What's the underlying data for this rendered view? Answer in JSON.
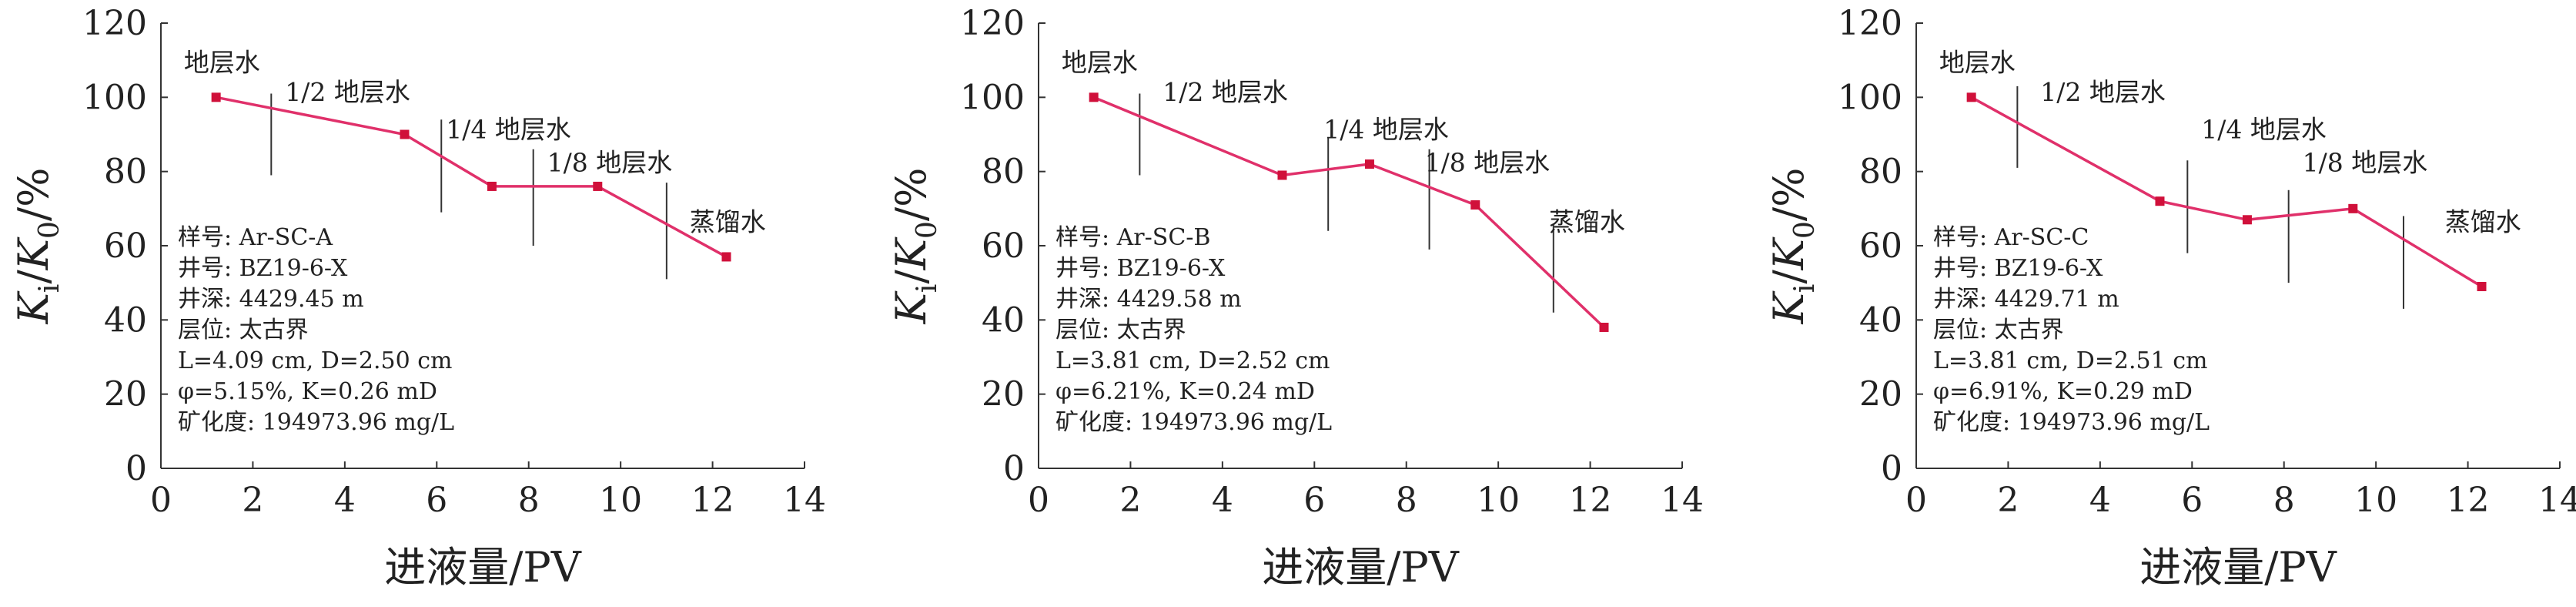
{
  "colors": {
    "series": "#e0306a",
    "marker": "#d0103a",
    "axis": "#333333",
    "divider": "#333333",
    "text": "#222222"
  },
  "chart_data": [
    {
      "type": "line",
      "id": "A",
      "ylabel": "K_i/K_0/%",
      "ylabel_parts": {
        "main": "K",
        "sub1": "i",
        "sep": "/",
        "main2": "K",
        "sub2": "0",
        "unit": "/%"
      },
      "xlabel": "进液量/PV",
      "xlim": [
        0,
        14
      ],
      "ylim": [
        0,
        120
      ],
      "xticks": [
        0,
        2,
        4,
        6,
        8,
        10,
        12,
        14
      ],
      "yticks": [
        0,
        20,
        40,
        60,
        80,
        100,
        120
      ],
      "xtick_labels": [
        "0",
        "2",
        "4",
        "6",
        "8",
        "10",
        "12",
        "14"
      ],
      "ytick_labels": [
        "0",
        "20",
        "40",
        "60",
        "80",
        "100",
        "120"
      ],
      "series": [
        {
          "x": [
            1.2,
            5.3,
            7.2,
            9.5,
            12.3
          ],
          "y": [
            100,
            90,
            76,
            76,
            57
          ]
        }
      ],
      "dividers": [
        {
          "x": 2.4,
          "y0": 79,
          "y1": 101
        },
        {
          "x": 6.1,
          "y0": 69,
          "y1": 94
        },
        {
          "x": 8.1,
          "y0": 60,
          "y1": 86
        },
        {
          "x": 11.0,
          "y0": 51,
          "y1": 77
        }
      ],
      "stage_labels": [
        {
          "text": "地层水",
          "x": 0.5,
          "y": 107
        },
        {
          "text": "1/2 地层水",
          "x": 2.7,
          "y": 99
        },
        {
          "text": "1/4 地层水",
          "x": 6.2,
          "y": 89
        },
        {
          "text": "1/8 地层水",
          "x": 8.4,
          "y": 80
        },
        {
          "text": "蒸馏水",
          "x": 11.5,
          "y": 64
        }
      ],
      "info": [
        "样号: Ar-SC-A",
        "井号: BZ19-6-X",
        "井深: 4429.45 m",
        "层位: 太古界",
        "L=4.09 cm, D=2.50 cm",
        "φ=5.15%, K=0.26 mD",
        "矿化度: 194973.96 mg/L"
      ]
    },
    {
      "type": "line",
      "id": "B",
      "ylabel": "K_i/K_0/%",
      "ylabel_parts": {
        "main": "K",
        "sub1": "i",
        "sep": "/",
        "main2": "K",
        "sub2": "0",
        "unit": "/%"
      },
      "xlabel": "进液量/PV",
      "xlim": [
        0,
        14
      ],
      "ylim": [
        0,
        120
      ],
      "xticks": [
        0,
        2,
        4,
        6,
        8,
        10,
        12,
        14
      ],
      "yticks": [
        0,
        20,
        40,
        60,
        80,
        100,
        120
      ],
      "xtick_labels": [
        "0",
        "2",
        "4",
        "6",
        "8",
        "10",
        "12",
        "14"
      ],
      "ytick_labels": [
        "0",
        "20",
        "40",
        "60",
        "80",
        "100",
        "120"
      ],
      "series": [
        {
          "x": [
            1.2,
            5.3,
            7.2,
            9.5,
            12.3
          ],
          "y": [
            100,
            79,
            82,
            71,
            38
          ]
        }
      ],
      "dividers": [
        {
          "x": 2.2,
          "y0": 79,
          "y1": 101
        },
        {
          "x": 6.3,
          "y0": 64,
          "y1": 89
        },
        {
          "x": 8.5,
          "y0": 59,
          "y1": 86
        },
        {
          "x": 11.2,
          "y0": 42,
          "y1": 66
        }
      ],
      "stage_labels": [
        {
          "text": "地层水",
          "x": 0.5,
          "y": 107
        },
        {
          "text": "1/2 地层水",
          "x": 2.7,
          "y": 99
        },
        {
          "text": "1/4 地层水",
          "x": 6.2,
          "y": 89
        },
        {
          "text": "1/8 地层水",
          "x": 8.4,
          "y": 80
        },
        {
          "text": "蒸馏水",
          "x": 11.1,
          "y": 64
        }
      ],
      "info": [
        "样号: Ar-SC-B",
        "井号: BZ19-6-X",
        "井深: 4429.58 m",
        "层位: 太古界",
        "L=3.81 cm, D=2.52 cm",
        "φ=6.21%, K=0.24 mD",
        "矿化度: 194973.96 mg/L"
      ]
    },
    {
      "type": "line",
      "id": "C",
      "ylabel": "K_i/K_0/%",
      "ylabel_parts": {
        "main": "K",
        "sub1": "i",
        "sep": "/",
        "main2": "K",
        "sub2": "0",
        "unit": "/%"
      },
      "xlabel": "进液量/PV",
      "xlim": [
        0,
        14
      ],
      "ylim": [
        0,
        120
      ],
      "xticks": [
        0,
        2,
        4,
        6,
        8,
        10,
        12,
        14
      ],
      "yticks": [
        0,
        20,
        40,
        60,
        80,
        100,
        120
      ],
      "xtick_labels": [
        "0",
        "2",
        "4",
        "6",
        "8",
        "10",
        "12",
        "14"
      ],
      "ytick_labels": [
        "0",
        "20",
        "40",
        "60",
        "80",
        "100",
        "120"
      ],
      "series": [
        {
          "x": [
            1.2,
            5.3,
            7.2,
            9.5,
            12.3
          ],
          "y": [
            100,
            72,
            67,
            70,
            49
          ]
        }
      ],
      "dividers": [
        {
          "x": 2.2,
          "y0": 81,
          "y1": 103
        },
        {
          "x": 5.9,
          "y0": 58,
          "y1": 83
        },
        {
          "x": 8.1,
          "y0": 50,
          "y1": 75
        },
        {
          "x": 10.6,
          "y0": 43,
          "y1": 68
        }
      ],
      "stage_labels": [
        {
          "text": "地层水",
          "x": 0.5,
          "y": 107
        },
        {
          "text": "1/2 地层水",
          "x": 2.7,
          "y": 99
        },
        {
          "text": "1/4 地层水",
          "x": 6.2,
          "y": 89
        },
        {
          "text": "1/8 地层水",
          "x": 8.4,
          "y": 80
        },
        {
          "text": "蒸馏水",
          "x": 11.5,
          "y": 64
        }
      ],
      "info": [
        "样号: Ar-SC-C",
        "井号: BZ19-6-X",
        "井深: 4429.71 m",
        "层位: 太古界",
        "L=3.81 cm, D=2.51 cm",
        "φ=6.91%, K=0.29 mD",
        "矿化度: 194973.96 mg/L"
      ]
    }
  ]
}
